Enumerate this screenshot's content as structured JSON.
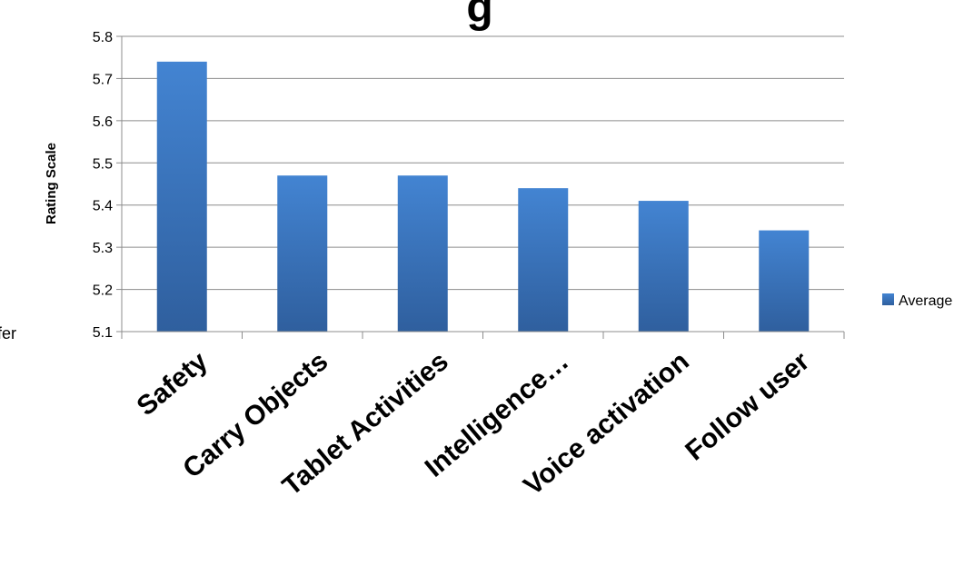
{
  "chart_data": {
    "type": "bar",
    "title_fragment": "g",
    "left_fragment": "fer",
    "ylabel": "Rating Scale",
    "xlabel": "",
    "categories": [
      "Safety",
      "Carry Objects",
      "Tablet Activities",
      "Intelligence…",
      "Voice activation",
      "Follow user"
    ],
    "series": [
      {
        "name": "Average",
        "values": [
          5.74,
          5.47,
          5.47,
          5.44,
          5.41,
          5.34
        ],
        "color": "#3f78c2"
      }
    ],
    "ylim": [
      5.1,
      5.8
    ],
    "yticks": [
      "5.1",
      "5.2",
      "5.3",
      "5.4",
      "5.5",
      "5.6",
      "5.7",
      "5.8"
    ],
    "grid": true,
    "legend_position": "right"
  }
}
